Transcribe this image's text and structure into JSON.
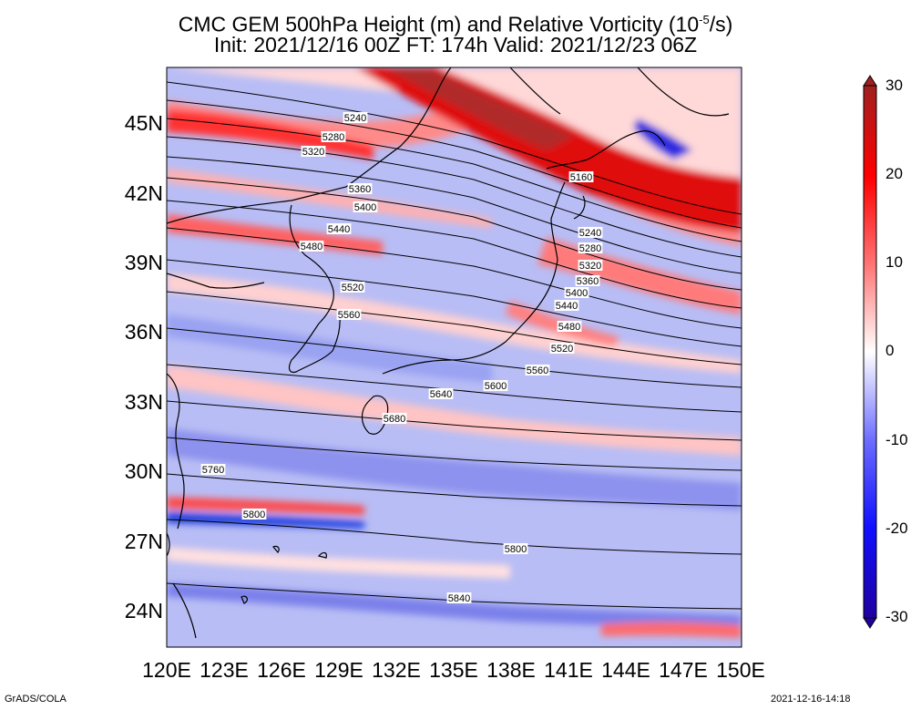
{
  "title_line1": "CMC GEM 500hPa Height (m) and Relative Vorticity (10",
  "title_exp": "-5",
  "title_unit": "/s)",
  "title_line2": "Init: 2021/12/16 00Z  FT: 174h  Valid: 2021/12/23 06Z",
  "lat_labels": [
    "45N",
    "42N",
    "39N",
    "36N",
    "33N",
    "30N",
    "27N",
    "24N"
  ],
  "lon_labels": [
    "120E",
    "123E",
    "126E",
    "129E",
    "132E",
    "135E",
    "138E",
    "141E",
    "144E",
    "147E",
    "150E"
  ],
  "colorbar_labels": [
    "30",
    "20",
    "10",
    "0",
    "-10",
    "-20",
    "-30"
  ],
  "contour_labels": {
    "west": [
      "5240",
      "5280",
      "5320",
      "5360",
      "5400",
      "5440",
      "5480",
      "5520",
      "5560",
      "5640",
      "5680",
      "5760",
      "5800",
      "5840"
    ],
    "east": [
      "5160",
      "5240",
      "5280",
      "5320",
      "5360",
      "5400",
      "5440",
      "5480",
      "5520",
      "5560",
      "5600",
      "5800"
    ]
  },
  "footer_left": "GrADS/COLA",
  "footer_right": "2021-12-16-14:18",
  "colors": {
    "positive": "#e60000",
    "strong_positive": "#b02020",
    "negative": "#2a2ae0",
    "strong_negative": "#2000a0",
    "zero": "#ffffff",
    "contour": "#000000"
  }
}
